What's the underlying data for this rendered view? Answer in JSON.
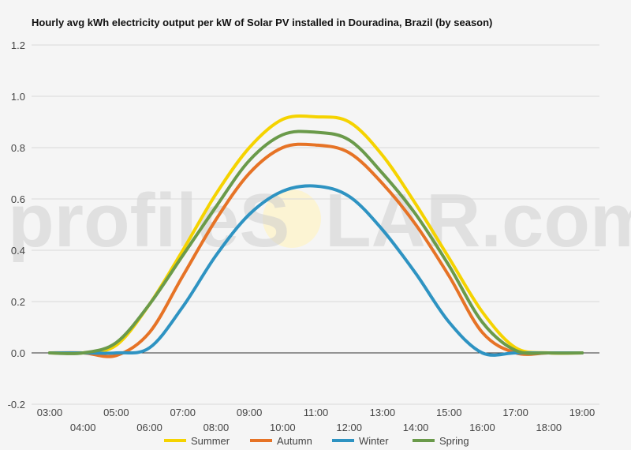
{
  "chart_data": {
    "type": "line",
    "title": "Hourly avg kWh electricity output per kW of Solar PV installed in Douradina, Brazil (by season)",
    "watermark": {
      "left": "profileS",
      "right": "LAR.com"
    },
    "x": [
      "03:00",
      "04:00",
      "05:00",
      "06:00",
      "07:00",
      "08:00",
      "09:00",
      "10:00",
      "11:00",
      "12:00",
      "13:00",
      "14:00",
      "15:00",
      "16:00",
      "17:00",
      "18:00",
      "19:00"
    ],
    "ylim": [
      -0.2,
      1.2
    ],
    "yticks": [
      "-0.2",
      "0.0",
      "0.2",
      "0.4",
      "0.6",
      "0.8",
      "1.0",
      "1.2"
    ],
    "grid": true,
    "legend_position": "bottom",
    "series": [
      {
        "name": "Summer",
        "color": "#f5d300",
        "values": [
          0,
          0,
          0.03,
          0.19,
          0.4,
          0.62,
          0.8,
          0.91,
          0.92,
          0.9,
          0.77,
          0.58,
          0.37,
          0.16,
          0.02,
          0,
          0
        ]
      },
      {
        "name": "Autumn",
        "color": "#e67326",
        "values": [
          0,
          0,
          -0.01,
          0.08,
          0.3,
          0.52,
          0.7,
          0.8,
          0.81,
          0.78,
          0.66,
          0.5,
          0.3,
          0.08,
          0,
          0,
          0
        ]
      },
      {
        "name": "Winter",
        "color": "#2e93c2",
        "values": [
          0,
          0,
          0,
          0.02,
          0.18,
          0.38,
          0.54,
          0.63,
          0.65,
          0.61,
          0.48,
          0.31,
          0.12,
          0,
          0,
          0,
          0
        ]
      },
      {
        "name": "Spring",
        "color": "#6a9a4a",
        "values": [
          0,
          0,
          0.04,
          0.19,
          0.38,
          0.57,
          0.75,
          0.85,
          0.86,
          0.83,
          0.7,
          0.54,
          0.34,
          0.12,
          0.01,
          0,
          0
        ]
      }
    ]
  }
}
